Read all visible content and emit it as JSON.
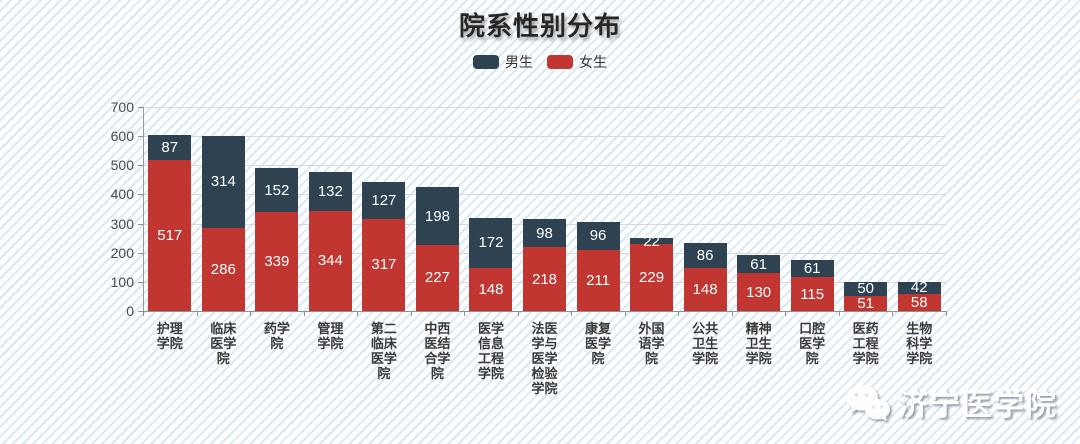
{
  "title": "院系性别分布",
  "watermark": "济宁医学院",
  "colors": {
    "male": "#2e4252",
    "female": "#c23632",
    "grid": "#d9d9d9",
    "axis": "#8f8f8f",
    "value_label": "#ffffff",
    "stripe": "#d9e8f7"
  },
  "chart_data": {
    "type": "bar",
    "stacked": true,
    "title": "院系性别分布",
    "legend_position": "top",
    "grid": true,
    "categories": [
      "护理学院",
      "临床医学院",
      "药学院",
      "管理学院",
      "第二临床医学院",
      "中西医结合学院",
      "医学信息工程学院",
      "法医学与医学检验学院",
      "康复医学院",
      "外国语学院",
      "公共卫生学院",
      "精神卫生学院",
      "口腔医学院",
      "医药工程学院",
      "生物科学学院"
    ],
    "series": [
      {
        "name": "男生",
        "color": "#2e4252",
        "stack_position": "top",
        "values": [
          87,
          314,
          152,
          132,
          127,
          198,
          172,
          98,
          96,
          22,
          86,
          61,
          61,
          50,
          42
        ]
      },
      {
        "name": "女生",
        "color": "#c23632",
        "stack_position": "bottom",
        "values": [
          517,
          286,
          339,
          344,
          317,
          227,
          148,
          218,
          211,
          229,
          148,
          130,
          115,
          51,
          58
        ]
      }
    ],
    "totals": [
      604,
      600,
      491,
      476,
      444,
      425,
      320,
      316,
      307,
      251,
      234,
      191,
      176,
      101,
      100
    ],
    "ylim": [
      0,
      700
    ],
    "yticks": [
      0,
      100,
      200,
      300,
      400,
      500,
      600,
      700
    ],
    "xlabel": "",
    "ylabel": ""
  }
}
